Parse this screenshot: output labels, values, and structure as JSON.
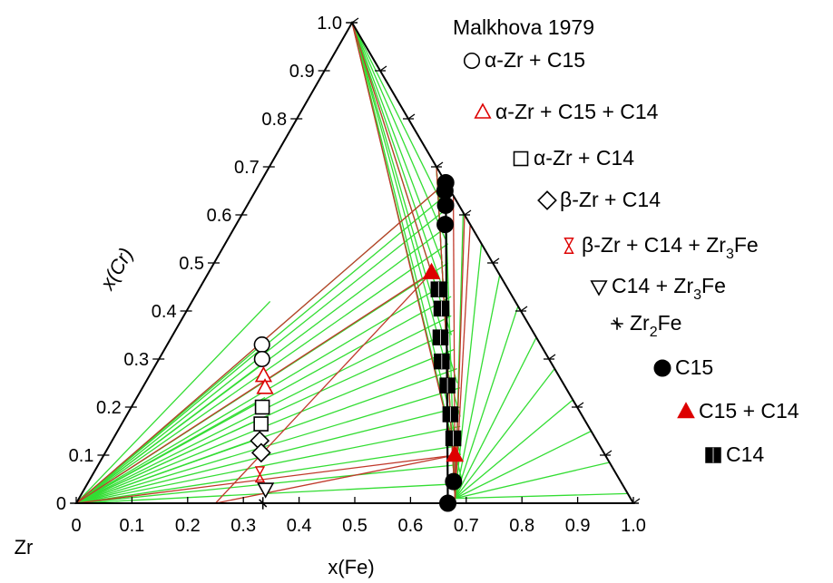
{
  "chart_data": {
    "type": "scatter",
    "subtype": "ternary",
    "corner_label": "Zr",
    "xlabel": "x(Fe)",
    "ylabel": "x(Cr)",
    "ticks": [
      "0",
      "0.1",
      "0.2",
      "0.3",
      "0.4",
      "0.5",
      "0.6",
      "0.7",
      "0.8",
      "0.9",
      "1.0"
    ],
    "legend_title": "Malkhova 1979",
    "legend_position": "top-right",
    "colors": {
      "red": "#dd0000",
      "black": "#000000",
      "axis": "#000000"
    },
    "series": [
      {
        "label_parts": [
          "α-Zr + C15"
        ],
        "marker": "circle-open",
        "color": "#000000",
        "points": [
          [
            0.17,
            0.33
          ],
          [
            0.185,
            0.3
          ]
        ]
      },
      {
        "label_parts": [
          "α-Zr + C15 + C14"
        ],
        "marker": "triangle-open",
        "color": "#dd0000",
        "points": [
          [
            0.205,
            0.265
          ],
          [
            0.22,
            0.24
          ]
        ]
      },
      {
        "label_parts": [
          "α-Zr + C14"
        ],
        "marker": "square-open",
        "color": "#000000",
        "points": [
          [
            0.235,
            0.2
          ],
          [
            0.25,
            0.165
          ]
        ]
      },
      {
        "label_parts": [
          "β-Zr + C14"
        ],
        "marker": "diamond-open",
        "color": "#000000",
        "points": [
          [
            0.265,
            0.13
          ],
          [
            0.28,
            0.105
          ]
        ]
      },
      {
        "label_parts": [
          "β-Zr + C14 + Zr",
          "3",
          "Fe"
        ],
        "marker": "hourglass-open",
        "color": "#dd0000",
        "points": [
          [
            0.3,
            0.06
          ]
        ]
      },
      {
        "label_parts": [
          "C14 + Zr",
          "3",
          "Fe"
        ],
        "marker": "triangle-down-open",
        "color": "#000000",
        "points": [
          [
            0.325,
            0.03
          ]
        ]
      },
      {
        "label_parts": [
          "Zr",
          "2",
          "Fe"
        ],
        "marker": "plus-star",
        "color": "#000000",
        "points": [
          [
            0.335,
            0.0
          ]
        ]
      },
      {
        "label_parts": [
          "C15"
        ],
        "marker": "circle-filled",
        "color": "#000000",
        "points": [
          [
            0.333,
            0.667
          ],
          [
            0.34,
            0.65
          ],
          [
            0.356,
            0.62
          ],
          [
            0.375,
            0.58
          ],
          [
            0.655,
            0.045
          ],
          [
            0.667,
            0.0
          ]
        ]
      },
      {
        "label_parts": [
          "C15 + C14"
        ],
        "marker": "triangle-filled",
        "color": "#dd0000",
        "points": [
          [
            0.4,
            0.48
          ],
          [
            0.63,
            0.1
          ]
        ]
      },
      {
        "label_parts": [
          "C14"
        ],
        "marker": "square-filled",
        "color": "#000000",
        "points": [
          [
            0.43,
            0.445
          ],
          [
            0.455,
            0.405
          ],
          [
            0.483,
            0.345
          ],
          [
            0.51,
            0.295
          ],
          [
            0.545,
            0.245
          ],
          [
            0.58,
            0.185
          ],
          [
            0.61,
            0.135
          ]
        ]
      }
    ]
  }
}
